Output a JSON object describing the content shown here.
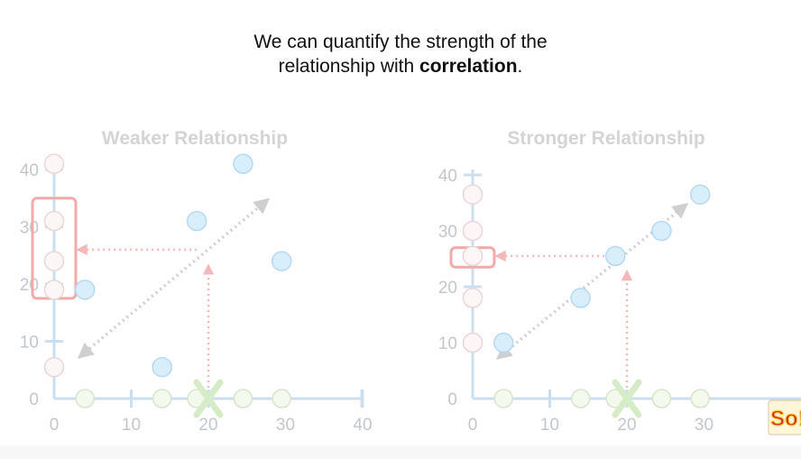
{
  "caption": {
    "line1": "We can quantify the strength of the",
    "line2_prefix": "relationship with ",
    "line2_bold": "correlation",
    "line2_suffix": "."
  },
  "colors": {
    "axis": "#c9dff0",
    "tick_label": "#c2c7cc",
    "title": "#d4d4d4",
    "blue_fill": "#d9eefb",
    "blue_stroke": "#b5d9f1",
    "pink_fill": "#fdf6f6",
    "pink_stroke": "#ead6d6",
    "green_fill": "#f4f9ee",
    "green_stroke": "#d8e4cd",
    "highlight": "#f1aaaa",
    "guide_arrow": "#f3b8b8",
    "trend_arrow": "#cfcfcf",
    "x_marker": "#d6ecc6"
  },
  "logo": {
    "text": "So!"
  },
  "chart_data": [
    {
      "type": "scatter",
      "title": "Weaker Relationship",
      "x_ticks": [
        "0",
        "10",
        "20",
        "30",
        "40"
      ],
      "y_ticks": [
        "0",
        "10",
        "20",
        "30",
        "40"
      ],
      "xlim": [
        0,
        40
      ],
      "ylim": [
        0,
        40
      ],
      "points": [
        {
          "x": 4,
          "y": 19
        },
        {
          "x": 14,
          "y": 5.5
        },
        {
          "x": 18.5,
          "y": 31
        },
        {
          "x": 24.5,
          "y": 41
        },
        {
          "x": 29.5,
          "y": 24
        }
      ],
      "y_projections": [
        5.5,
        19,
        24,
        31,
        41
      ],
      "x_projections": [
        4,
        14,
        18.5,
        24.5,
        29.5
      ],
      "highlight_y_range": [
        17.5,
        35
      ],
      "guess_x": 20,
      "guess_y": 26,
      "trend": [
        [
          3.5,
          7.5
        ],
        [
          27.5,
          34.5
        ]
      ]
    },
    {
      "type": "scatter",
      "title": "Stronger Relationship",
      "x_ticks": [
        "0",
        "10",
        "20",
        "30"
      ],
      "y_ticks": [
        "0",
        "10",
        "20",
        "30",
        "40"
      ],
      "xlim": [
        0,
        40
      ],
      "ylim": [
        0,
        40
      ],
      "points": [
        {
          "x": 4,
          "y": 10
        },
        {
          "x": 14,
          "y": 18
        },
        {
          "x": 18.5,
          "y": 25.5
        },
        {
          "x": 24.5,
          "y": 30
        },
        {
          "x": 29.5,
          "y": 36.5
        }
      ],
      "y_projections": [
        10,
        18,
        25.5,
        30,
        36.5
      ],
      "x_projections": [
        4,
        14,
        18.5,
        24.5,
        29.5
      ],
      "highlight_y_range": [
        23.5,
        27
      ],
      "guess_x": 20,
      "guess_y": 25.5,
      "trend": [
        [
          3.5,
          7.5
        ],
        [
          27.5,
          34.5
        ]
      ]
    }
  ]
}
